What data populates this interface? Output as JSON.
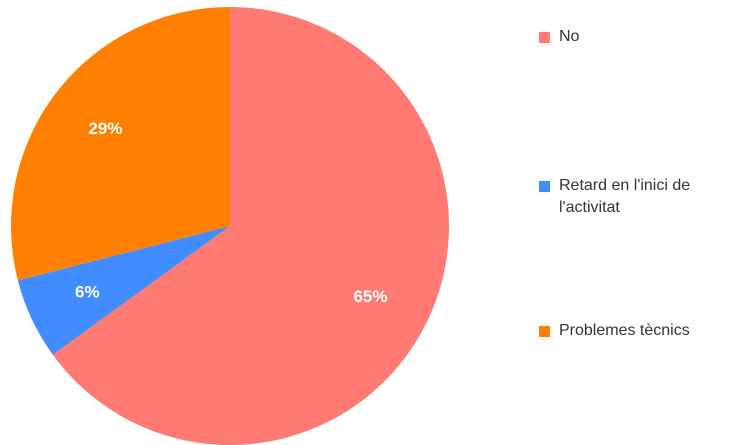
{
  "chart_data": {
    "type": "pie",
    "title": "",
    "slices": [
      {
        "label": "No",
        "value": 65,
        "display": "65%",
        "color": "#FF7A72"
      },
      {
        "label": "Retard en l'inici de l'activitat",
        "value": 6,
        "display": "6%",
        "color": "#418CFF"
      },
      {
        "label": "Problemes tècnics",
        "value": 29,
        "display": "29%",
        "color": "#FF8000"
      }
    ],
    "start_angle_deg": 0,
    "direction": "clockwise",
    "legend_position": "right"
  },
  "legend": {
    "items": [
      {
        "label": "No",
        "color": "#FF7A72"
      },
      {
        "label": "Retard en l'inici de l'activitat",
        "color": "#418CFF"
      },
      {
        "label": "Problemes tècnics",
        "color": "#FF8000"
      }
    ]
  }
}
